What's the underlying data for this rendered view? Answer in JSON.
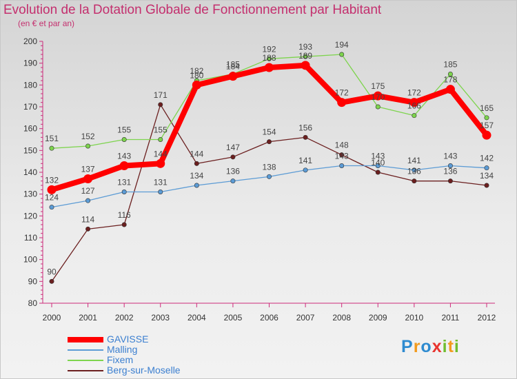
{
  "title": "Evolution de la Dotation Globale de Fonctionnement par Habitant",
  "subtitle": "(en € et par an)",
  "logo": {
    "letters": [
      {
        "ch": "P",
        "color": "#2e8bd0"
      },
      {
        "ch": "r",
        "color": "#f29a1c"
      },
      {
        "ch": "o",
        "color": "#2e8bd0"
      },
      {
        "ch": "x",
        "color": "#e8342f"
      },
      {
        "ch": "i",
        "color": "#6fbd2e"
      },
      {
        "ch": "t",
        "color": "#f29a1c"
      },
      {
        "ch": "i",
        "color": "#6fbd2e"
      }
    ]
  },
  "chart_data": {
    "type": "line",
    "x": [
      2000,
      2001,
      2002,
      2003,
      2004,
      2005,
      2006,
      2007,
      2008,
      2009,
      2010,
      2011,
      2012
    ],
    "ylim": [
      80,
      200
    ],
    "yticks": [
      80,
      90,
      100,
      110,
      120,
      130,
      140,
      150,
      160,
      170,
      180,
      190,
      200
    ],
    "grid": false,
    "legend_position": "bottom-left",
    "series": [
      {
        "name": "GAVISSE",
        "color": "#ff0000",
        "values": [
          132,
          137,
          143,
          144,
          180,
          184,
          188,
          189,
          172,
          175,
          172,
          178,
          157
        ]
      },
      {
        "name": "Malling",
        "color": "#5b9bd5",
        "values": [
          124,
          127,
          131,
          131,
          134,
          136,
          138,
          141,
          143,
          143,
          141,
          143,
          142
        ]
      },
      {
        "name": "Fixem",
        "color": "#7dd44d",
        "values": [
          151,
          152,
          155,
          155,
          182,
          185,
          192,
          193,
          194,
          170,
          166,
          185,
          165
        ]
      },
      {
        "name": "Berg-sur-Moselle",
        "color": "#6b1f1f",
        "values": [
          90,
          114,
          116,
          171,
          144,
          147,
          154,
          156,
          148,
          140,
          136,
          136,
          134
        ]
      }
    ]
  }
}
